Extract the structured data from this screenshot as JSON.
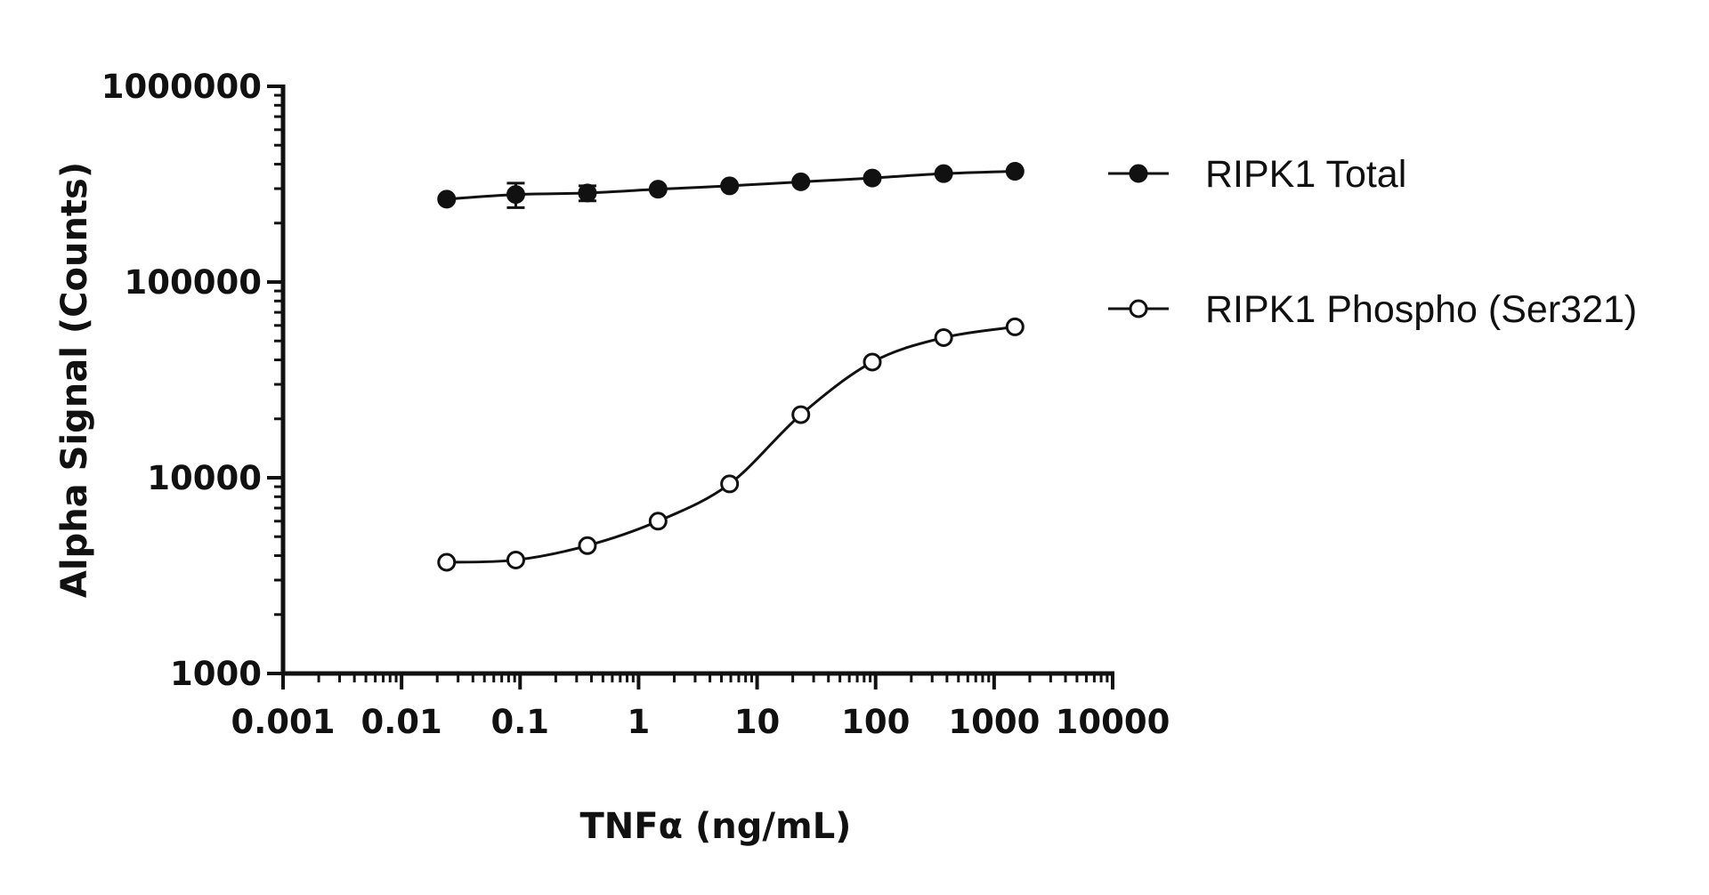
{
  "chart_data": {
    "type": "scatter",
    "title": "",
    "xlabel": "TNFα (ng/mL)",
    "ylabel": "Alpha Signal (Counts)",
    "x_scale": "log",
    "y_scale": "log",
    "xlim": [
      0.001,
      10000
    ],
    "ylim": [
      1000,
      1000000
    ],
    "x_tick_labels": [
      "0.001",
      "0.01",
      "0.1",
      "1",
      "10",
      "100",
      "1000",
      "10000"
    ],
    "y_tick_labels": [
      "1000",
      "10000",
      "100000",
      "1000000"
    ],
    "grid": false,
    "legend_position": "right",
    "series": [
      {
        "name": "RIPK1 Total",
        "marker": "filled-circle",
        "color": "#111111",
        "x": [
          0.024,
          0.092,
          0.37,
          1.46,
          5.86,
          23.4,
          93.8,
          375,
          1500
        ],
        "y": [
          265000,
          280000,
          285000,
          298000,
          310000,
          325000,
          340000,
          358000,
          368000
        ],
        "error": [
          0,
          40000,
          25000,
          0,
          0,
          0,
          0,
          0,
          0
        ]
      },
      {
        "name": "RIPK1 Phospho (Ser321)",
        "marker": "open-circle",
        "color": "#111111",
        "x": [
          0.024,
          0.092,
          0.37,
          1.46,
          5.86,
          23.4,
          93.8,
          375,
          1500
        ],
        "y": [
          3700,
          3800,
          4500,
          6000,
          9300,
          21000,
          39000,
          52000,
          59000
        ]
      }
    ]
  }
}
